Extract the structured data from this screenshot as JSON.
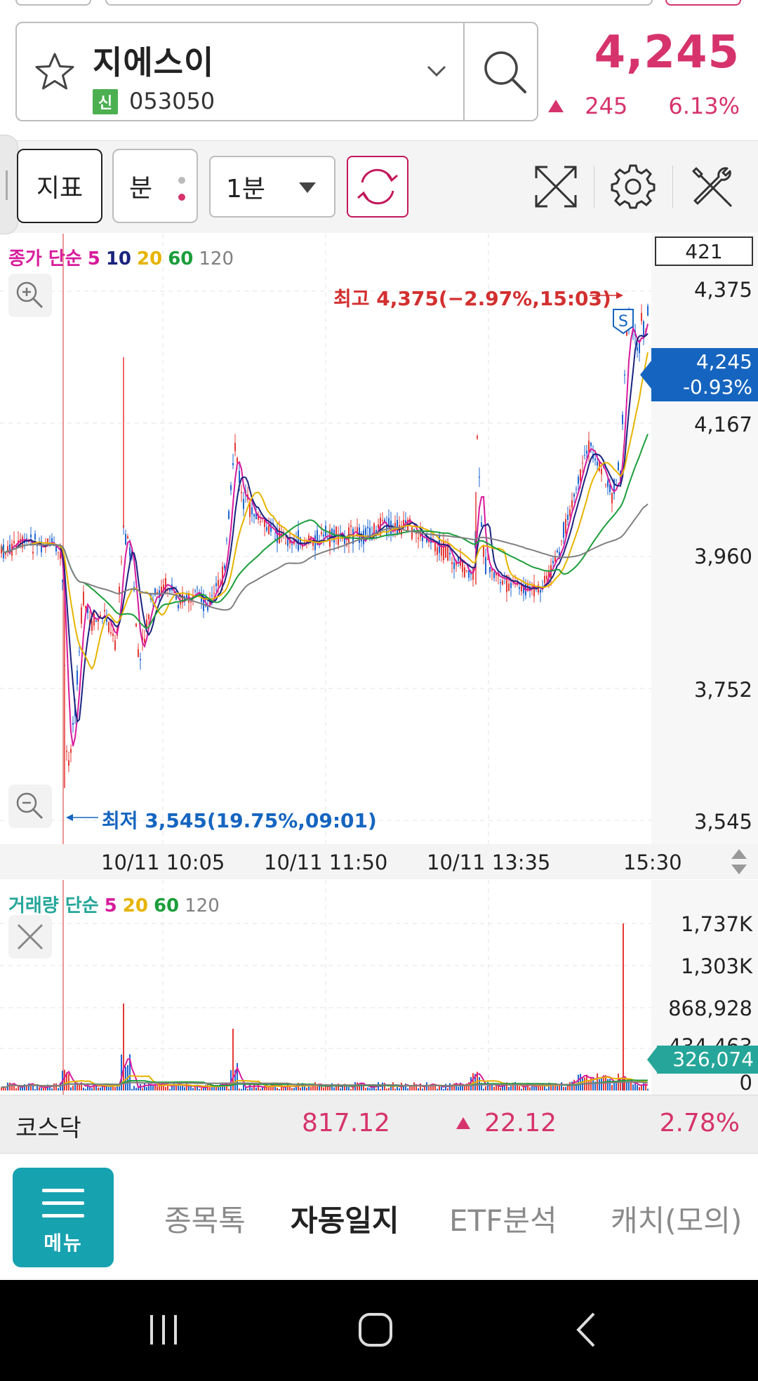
{
  "stock": {
    "name": "지에스이",
    "badge": "신",
    "code": "053050",
    "price": "4,245",
    "change": "245",
    "change_pct": "6.13%"
  },
  "toolbar": {
    "indicator_label": "지표",
    "period_label": "분",
    "interval_value": "1분"
  },
  "chart": {
    "legend": {
      "prefix": "종가 단순",
      "ma": [
        "5",
        "10",
        "20",
        "60",
        "120"
      ]
    },
    "volume_box": "421",
    "y_ticks": [
      "4,375",
      "4,167",
      "3,960",
      "3,752",
      "3,545"
    ],
    "current_price": "4,245",
    "current_pct": "-0.93%",
    "high_annotation": "최고 4,375(−2.97%,15:03)",
    "low_annotation": "최저 3,545(19.75%,09:01)",
    "x_ticks": [
      "10/11 10:05",
      "10/11 11:50",
      "10/11 13:35",
      "15:30"
    ],
    "marker": "S"
  },
  "volume_chart": {
    "legend": {
      "prefix": "거래량 단순",
      "ma": [
        "5",
        "20",
        "60",
        "120"
      ]
    },
    "y_ticks": [
      "1,737K",
      "1,303K",
      "868,928",
      "434,463",
      "0"
    ],
    "current": "326,074"
  },
  "index_bar": {
    "name": "코스닥",
    "value": "817.12",
    "change": "22.12",
    "change_pct": "2.78%"
  },
  "nav": {
    "menu_label": "메뉴",
    "tabs": [
      "종목톡",
      "자동일지",
      "ETF분석",
      "캐치(모의)"
    ]
  },
  "colors": {
    "up": "#d6336c",
    "down_tag": "#1565c0",
    "ma5": "#d81b9c",
    "ma10": "#1a237e",
    "ma20": "#e6b400",
    "ma60": "#1b9e3a",
    "ma120": "#808080",
    "menu": "#17a2b0"
  }
}
